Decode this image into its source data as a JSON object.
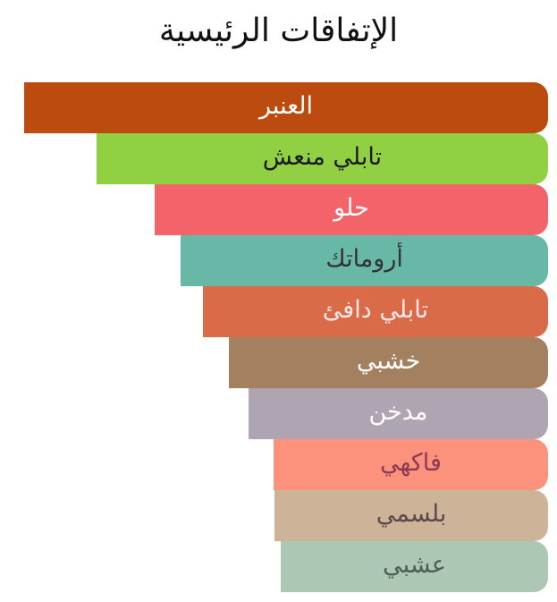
{
  "title": "الإتفاقات الرئيسية",
  "chart_data": {
    "type": "bar",
    "orientation": "horizontal",
    "title": "الإتفاقات الرئيسية",
    "categories": [
      "العنبر",
      "تابلي منعش",
      "حلو",
      "أروماتك",
      "تابلي دافئ",
      "خشبي",
      "مدخن",
      "فاكهي",
      "بلسمي",
      "عشبي"
    ],
    "values": [
      100,
      86.2,
      75.1,
      70.1,
      65.9,
      60.9,
      57.2,
      52.4,
      52.2,
      51.0
    ],
    "unit": "percent of strongest accord",
    "colors": [
      "#bc4b10",
      "#92d043",
      "#f2636a",
      "#67b8a6",
      "#d96b49",
      "#a3805f",
      "#afa4b2",
      "#fd927c",
      "#cdb499",
      "#acc8b5"
    ],
    "text_colors": [
      "#ffffff",
      "#1a1a1a",
      "#ffffff",
      "#333333",
      "#ffe8ec",
      "#ffffff",
      "#ffffff",
      "#8a3a52",
      "#5a4a4e",
      "#4d5e57"
    ],
    "axis": "none",
    "grid": false,
    "legend": "none"
  }
}
